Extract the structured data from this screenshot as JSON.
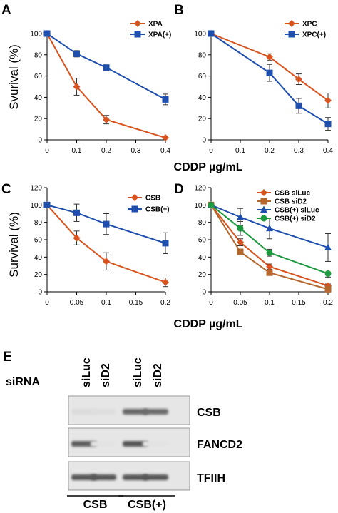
{
  "shared": {
    "xlabel_top": "CDDP µg/mL",
    "xlabel_bottom": "CDDP µg/mL"
  },
  "colors": {
    "orange": "#d9531e",
    "blue": "#1f4fae",
    "brown": "#b5682e",
    "green": "#1d9a3f"
  },
  "chart_data": [
    {
      "panel": "A",
      "type": "line",
      "ylabel": "Svurival (%)",
      "xlim": [
        0,
        0.4
      ],
      "ylim": [
        0,
        100
      ],
      "x_ticks": [
        "0",
        "0.1",
        "0.2",
        "0.3",
        "0.4"
      ],
      "y_ticks": [
        "0",
        "20",
        "40",
        "60",
        "80",
        "100"
      ],
      "legend_position": "top-right",
      "series": [
        {
          "name": "XPA",
          "color": "#d9531e",
          "marker": "diamond",
          "x": [
            0,
            0.1,
            0.2,
            0.4
          ],
          "y": [
            100,
            50,
            19,
            2
          ],
          "err": [
            0,
            8,
            4,
            0
          ]
        },
        {
          "name": "XPA(+)",
          "color": "#1f4fae",
          "marker": "square",
          "x": [
            0,
            0.1,
            0.2,
            0.4
          ],
          "y": [
            100,
            81,
            68,
            38
          ],
          "err": [
            0,
            3,
            2,
            5
          ]
        }
      ]
    },
    {
      "panel": "B",
      "type": "line",
      "ylabel": "",
      "xlim": [
        0,
        0.4
      ],
      "ylim": [
        0,
        100
      ],
      "x_ticks": [
        "0",
        "0.1",
        "0.2",
        "0.3",
        "0.4"
      ],
      "y_ticks": [
        "0",
        "20",
        "40",
        "60",
        "80",
        "100"
      ],
      "legend_position": "top-right",
      "series": [
        {
          "name": "XPC",
          "color": "#d9531e",
          "marker": "diamond",
          "x": [
            0,
            0.2,
            0.3,
            0.4
          ],
          "y": [
            100,
            78,
            57,
            37
          ],
          "err": [
            0,
            3,
            5,
            7
          ]
        },
        {
          "name": "XPC(+)",
          "color": "#1f4fae",
          "marker": "square",
          "x": [
            0,
            0.2,
            0.3,
            0.4
          ],
          "y": [
            100,
            63,
            32,
            15
          ],
          "err": [
            0,
            8,
            7,
            6
          ]
        }
      ]
    },
    {
      "panel": "C",
      "type": "line",
      "ylabel": "Survival (%)",
      "xlim": [
        0,
        0.2
      ],
      "ylim": [
        0,
        120
      ],
      "x_ticks": [
        "0",
        "0.05",
        "0.1",
        "0.15",
        "0.2"
      ],
      "y_ticks": [
        "0",
        "20",
        "40",
        "60",
        "80",
        "100",
        "120"
      ],
      "legend_position": "top-right",
      "series": [
        {
          "name": "CSB",
          "color": "#d9531e",
          "marker": "diamond",
          "x": [
            0,
            0.05,
            0.1,
            0.2
          ],
          "y": [
            100,
            62,
            35,
            11
          ],
          "err": [
            0,
            8,
            10,
            5
          ]
        },
        {
          "name": "CSB(+)",
          "color": "#1f4fae",
          "marker": "square",
          "x": [
            0,
            0.05,
            0.1,
            0.2
          ],
          "y": [
            100,
            91,
            78,
            56
          ],
          "err": [
            0,
            10,
            12,
            12
          ]
        }
      ]
    },
    {
      "panel": "D",
      "type": "line",
      "ylabel": "",
      "xlim": [
        0,
        0.2
      ],
      "ylim": [
        0,
        120
      ],
      "x_ticks": [
        "0",
        "0.05",
        "0.1",
        "0.15",
        "0.2"
      ],
      "y_ticks": [
        "0",
        "20",
        "40",
        "60",
        "80",
        "100",
        "120"
      ],
      "legend_position": "top-right",
      "series": [
        {
          "name": "CSB siLuc",
          "color": "#d9531e",
          "marker": "diamond",
          "x": [
            0,
            0.05,
            0.1,
            0.2
          ],
          "y": [
            100,
            57,
            29,
            7
          ],
          "err": [
            0,
            4,
            3,
            2
          ]
        },
        {
          "name": "CSB siD2",
          "color": "#b5682e",
          "marker": "square",
          "x": [
            0,
            0.05,
            0.1,
            0.2
          ],
          "y": [
            100,
            46,
            22,
            3
          ],
          "err": [
            0,
            3,
            3,
            1
          ]
        },
        {
          "name": "CSB(+) siLuc",
          "color": "#1f4fae",
          "marker": "triangle",
          "x": [
            0,
            0.05,
            0.1,
            0.2
          ],
          "y": [
            100,
            86,
            73,
            51
          ],
          "err": [
            0,
            10,
            12,
            16
          ]
        },
        {
          "name": "CSB(+) siD2",
          "color": "#1d9a3f",
          "marker": "circle",
          "x": [
            0,
            0.05,
            0.1,
            0.2
          ],
          "y": [
            100,
            73,
            45,
            21
          ],
          "err": [
            0,
            8,
            4,
            4
          ]
        }
      ]
    }
  ],
  "blot": {
    "letter": "E",
    "row_label": "siRNA",
    "lanes": [
      "siLuc",
      "siD2",
      "siLuc",
      "siD2"
    ],
    "bands": [
      {
        "label": "CSB",
        "intensity": [
          0.06,
          0.05,
          0.75,
          0.72
        ]
      },
      {
        "label": "FANCD2",
        "intensity": [
          0.8,
          0.02,
          0.85,
          0.02
        ]
      },
      {
        "label": "TFIIH",
        "intensity": [
          0.85,
          0.85,
          0.85,
          0.85
        ]
      }
    ],
    "groups": [
      {
        "label": "CSB",
        "lanes": [
          0,
          1
        ]
      },
      {
        "label": "CSB(+)",
        "lanes": [
          2,
          3
        ]
      }
    ]
  }
}
